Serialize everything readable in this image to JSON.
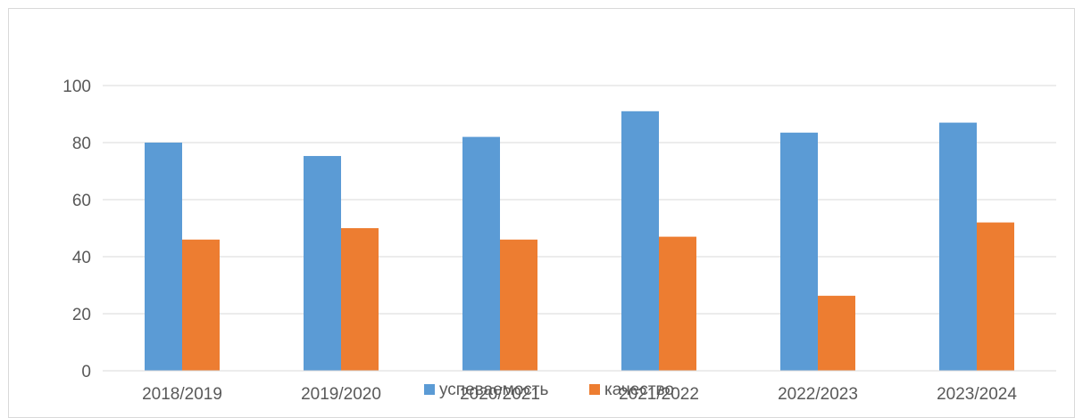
{
  "chart_data": {
    "type": "bar",
    "categories": [
      "2018/2019",
      "2019/2020",
      "2020/2021",
      "2021/2022",
      "2022/2023",
      "2023/2024"
    ],
    "series": [
      {
        "name": "успеваемость",
        "color": "#5b9bd5",
        "values": [
          80,
          75.3,
          82,
          91,
          83.5,
          87
        ]
      },
      {
        "name": "качество",
        "color": "#ed7d31",
        "values": [
          46,
          50,
          46,
          47,
          26.3,
          52
        ]
      }
    ],
    "title": "",
    "xlabel": "",
    "ylabel": "",
    "ylim": [
      0,
      100
    ],
    "yticks": [
      0,
      20,
      40,
      60,
      80,
      100
    ],
    "grid": true,
    "legend": "bottom"
  }
}
